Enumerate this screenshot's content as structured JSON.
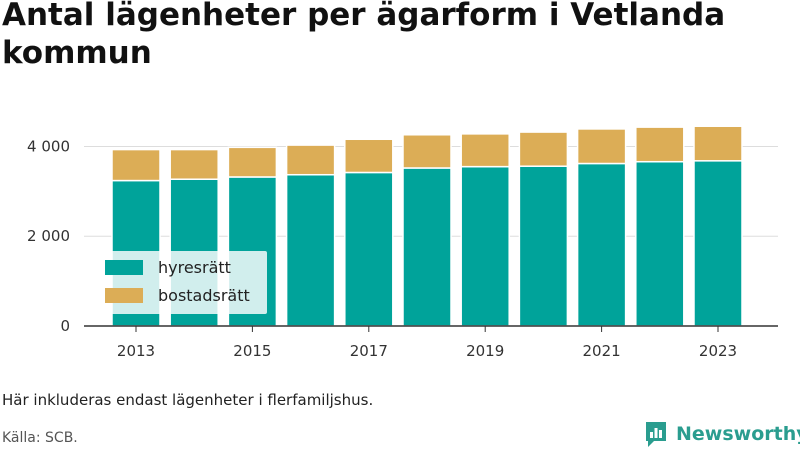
{
  "title": "Antal lägenheter per ägarform i Vetlanda kommun",
  "note": "Här inkluderas endast lägenheter i flerfamiljshus.",
  "source": "Källa: SCB.",
  "brand": {
    "name": "Newsworthy",
    "icon": "bar-chart-logo-icon",
    "color": "#2a9d8f"
  },
  "chart_data": {
    "type": "bar",
    "stacked": true,
    "categories": [
      "2013",
      "2014",
      "2015",
      "2016",
      "2017",
      "2018",
      "2019",
      "2020",
      "2021",
      "2022",
      "2023"
    ],
    "x_tick_labels": [
      "2013",
      "2015",
      "2017",
      "2019",
      "2021",
      "2023"
    ],
    "series": [
      {
        "name": "hyresrätt",
        "color": "#00a39a",
        "values": [
          3240,
          3270,
          3320,
          3370,
          3420,
          3520,
          3550,
          3560,
          3620,
          3660,
          3680
        ]
      },
      {
        "name": "bostadsrätt",
        "color": "#dcad56",
        "values": [
          690,
          660,
          660,
          660,
          740,
          740,
          730,
          760,
          770,
          770,
          770
        ]
      }
    ],
    "ylim": [
      0,
      4500
    ],
    "y_ticks": [
      0,
      2000,
      4000
    ],
    "y_tick_labels": [
      "0",
      "2 000",
      "4 000"
    ],
    "grid": true,
    "legend_placement": "bottom-left inside plot"
  }
}
